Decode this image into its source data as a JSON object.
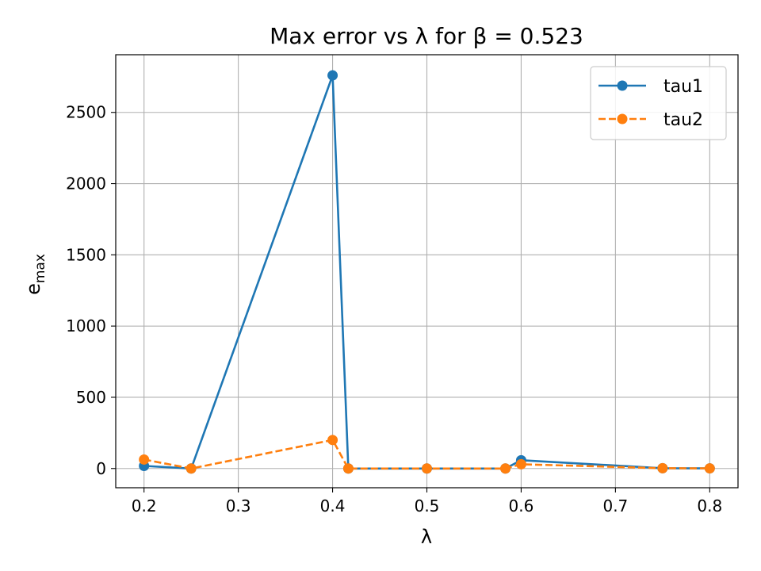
{
  "chart_data": {
    "type": "line",
    "title": "Max error vs λ for β = 0.523",
    "xlabel": "λ",
    "ylabel_main": "e",
    "ylabel_sub": "max",
    "xlim": [
      0.17,
      0.83
    ],
    "ylim": [
      -135,
      2905
    ],
    "xticks": [
      0.2,
      0.3,
      0.4,
      0.5,
      0.6,
      0.7,
      0.8
    ],
    "xtick_labels": [
      "0.2",
      "0.3",
      "0.4",
      "0.5",
      "0.6",
      "0.7",
      "0.8"
    ],
    "yticks": [
      0,
      500,
      1000,
      1500,
      2000,
      2500
    ],
    "ytick_labels": [
      "0",
      "500",
      "1000",
      "1500",
      "2000",
      "2500"
    ],
    "grid": true,
    "legend_position": "top-right",
    "series": [
      {
        "name": "tau1",
        "color": "#1f77b4",
        "line_style": "solid",
        "marker": "circle",
        "x": [
          0.2,
          0.25,
          0.4,
          0.4167,
          0.5,
          0.5833,
          0.6,
          0.75,
          0.8
        ],
        "y": [
          18,
          0,
          2760,
          0,
          0,
          0,
          58,
          2,
          1
        ]
      },
      {
        "name": "tau2",
        "color": "#ff7f0e",
        "line_style": "dashed",
        "marker": "circle",
        "x": [
          0.2,
          0.25,
          0.4,
          0.4167,
          0.5,
          0.5833,
          0.6,
          0.75,
          0.8
        ],
        "y": [
          63,
          0,
          200,
          0,
          0,
          0,
          30,
          2,
          1
        ]
      }
    ]
  }
}
